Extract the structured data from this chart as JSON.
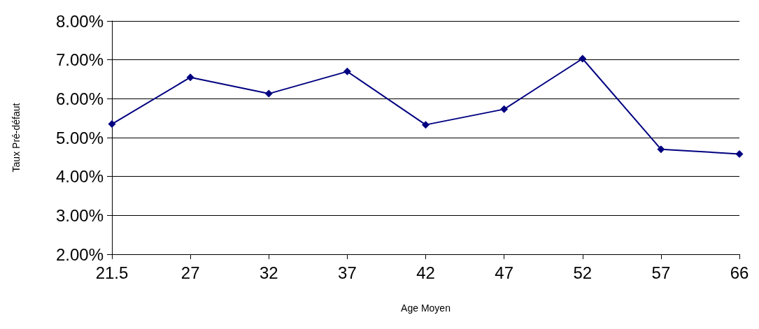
{
  "chart_data": {
    "type": "line",
    "xlabel": "Age Moyen",
    "ylabel": "Taux Pré-défaut",
    "categories": [
      "21.5",
      "27",
      "32",
      "37",
      "42",
      "47",
      "52",
      "57",
      "66"
    ],
    "series": [
      {
        "color": "#000080",
        "values": [
          5.35,
          6.55,
          6.13,
          6.7,
          5.33,
          5.73,
          7.03,
          4.7,
          4.58
        ]
      }
    ],
    "ylim": [
      2,
      8
    ],
    "yticks": [
      {
        "value": 2,
        "label": "2.00%"
      },
      {
        "value": 3,
        "label": "3.00%"
      },
      {
        "value": 4,
        "label": "4.00%"
      },
      {
        "value": 5,
        "label": "5.00%"
      },
      {
        "value": 6,
        "label": "6.00%"
      },
      {
        "value": 7,
        "label": "7.00%"
      },
      {
        "value": 8,
        "label": "8.00%"
      }
    ],
    "grid": "y",
    "marker": "diamond",
    "line_style": "solid"
  }
}
